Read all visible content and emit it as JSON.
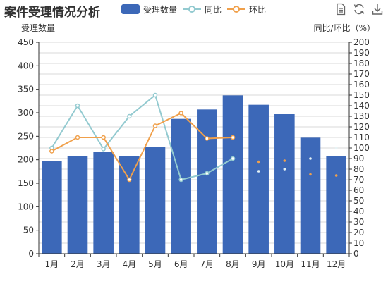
{
  "title": "案件受理情况分析",
  "legend": {
    "bar_label": "受理数量",
    "yoy_label": "同比",
    "mom_label": "环比"
  },
  "colors": {
    "bar": "#3c68b8",
    "yoy": "#93cad0",
    "mom": "#f0a04b",
    "axis": "#333333",
    "grid": "#cccccc"
  },
  "toolbox": [
    "document-icon",
    "refresh-icon",
    "download-icon"
  ],
  "chart_data": {
    "type": "bar",
    "title": "案件受理情况分析",
    "categories": [
      "1月",
      "2月",
      "3月",
      "4月",
      "5月",
      "6月",
      "7月",
      "8月",
      "9月",
      "10月",
      "11月",
      "12月"
    ],
    "ylabel": "受理数量",
    "y2label": "同比/环比（%）",
    "ylim": [
      0,
      450
    ],
    "y2lim": [
      0,
      200
    ],
    "y_ticks": [
      0,
      50,
      100,
      150,
      200,
      250,
      300,
      350,
      400,
      450
    ],
    "y2_ticks": [
      0,
      10,
      20,
      30,
      40,
      50,
      60,
      70,
      80,
      90,
      100,
      110,
      120,
      130,
      140,
      150,
      160,
      170,
      180,
      190,
      200
    ],
    "grid": true,
    "series": [
      {
        "name": "受理数量",
        "type": "bar",
        "values": [
          197,
          207,
          217,
          207,
          227,
          287,
          307,
          337,
          317,
          297,
          247,
          207
        ]
      },
      {
        "name": "同比",
        "type": "line",
        "axis": "right",
        "values": [
          100,
          140,
          99,
          130,
          150,
          70,
          76,
          90,
          78,
          80,
          90,
          100
        ]
      },
      {
        "name": "环比",
        "type": "line",
        "axis": "right",
        "values": [
          97,
          110,
          110,
          70,
          121,
          133,
          109,
          110,
          87,
          88,
          75,
          74
        ]
      }
    ]
  }
}
